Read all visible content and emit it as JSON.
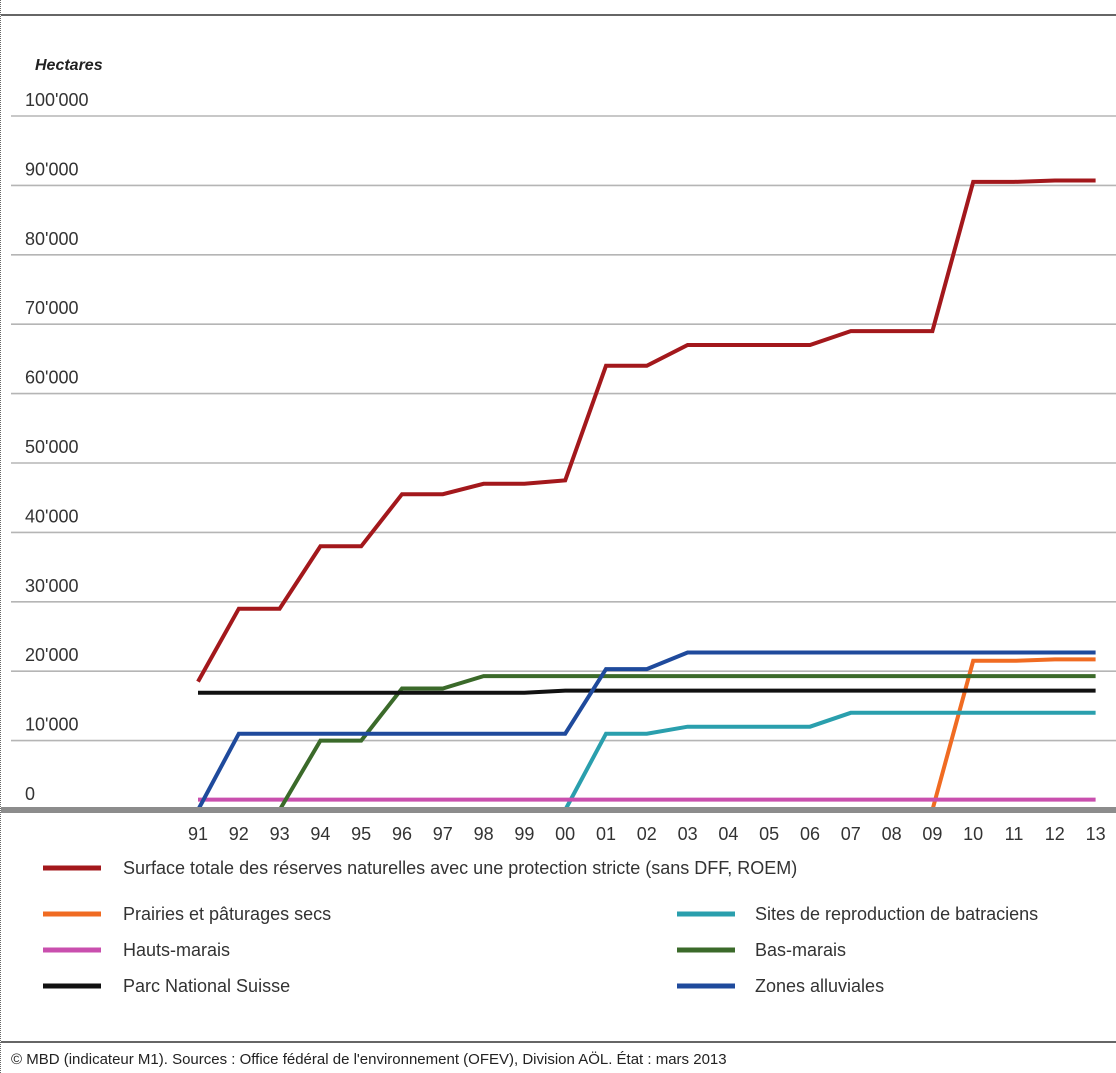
{
  "chart_data": {
    "type": "line",
    "title": "",
    "xlabel": "",
    "ylabel": "Hectares",
    "ylim": [
      0,
      100000
    ],
    "yticks": [
      "0",
      "10'000",
      "20'000",
      "30'000",
      "40'000",
      "50'000",
      "60'000",
      "70'000",
      "80'000",
      "90'000",
      "100'000"
    ],
    "categories": [
      "91",
      "92",
      "93",
      "94",
      "95",
      "96",
      "97",
      "98",
      "99",
      "00",
      "01",
      "02",
      "03",
      "04",
      "05",
      "06",
      "07",
      "08",
      "09",
      "10",
      "11",
      "12",
      "13"
    ],
    "grid": true,
    "legend_position": "bottom",
    "series": [
      {
        "name": "Surface totale des réserves naturelles avec une protection stricte  (sans DFF, ROEM)",
        "color": "#a3181c",
        "values": [
          18500,
          29000,
          29000,
          38000,
          38000,
          45500,
          45500,
          47000,
          47000,
          47500,
          64000,
          64000,
          67000,
          67000,
          67000,
          67000,
          69000,
          69000,
          69000,
          90500,
          90500,
          90700,
          90700
        ]
      },
      {
        "name": "Prairies et pâturages secs",
        "color": "#f06b22",
        "values": [
          null,
          null,
          null,
          null,
          null,
          null,
          null,
          null,
          null,
          null,
          null,
          null,
          null,
          null,
          null,
          null,
          null,
          null,
          0,
          21500,
          21500,
          21700,
          21700
        ]
      },
      {
        "name": "Sites de reproduction de batraciens",
        "color": "#2a9fad",
        "values": [
          null,
          null,
          null,
          null,
          null,
          null,
          null,
          null,
          null,
          0,
          11000,
          11000,
          12000,
          12000,
          12000,
          12000,
          14000,
          14000,
          14000,
          14000,
          14000,
          14000,
          14000
        ]
      },
      {
        "name": "Hauts-marais",
        "color": "#c94fae",
        "values": [
          1500,
          1500,
          1500,
          1500,
          1500,
          1500,
          1500,
          1500,
          1500,
          1500,
          1500,
          1500,
          1500,
          1500,
          1500,
          1500,
          1500,
          1500,
          1500,
          1500,
          1500,
          1500,
          1500
        ]
      },
      {
        "name": "Bas-marais",
        "color": "#3b6a2a",
        "values": [
          null,
          null,
          0,
          10000,
          10000,
          17500,
          17500,
          19300,
          19300,
          19300,
          19300,
          19300,
          19300,
          19300,
          19300,
          19300,
          19300,
          19300,
          19300,
          19300,
          19300,
          19300,
          19300
        ]
      },
      {
        "name": "Parc National Suisse",
        "color": "#111111",
        "values": [
          16900,
          16900,
          16900,
          16900,
          16900,
          16900,
          16900,
          16900,
          16900,
          17200,
          17200,
          17200,
          17200,
          17200,
          17200,
          17200,
          17200,
          17200,
          17200,
          17200,
          17200,
          17200,
          17200
        ]
      },
      {
        "name": "Zones alluviales",
        "color": "#1f4a9c",
        "values": [
          0,
          11000,
          11000,
          11000,
          11000,
          11000,
          11000,
          11000,
          11000,
          11000,
          20300,
          20300,
          22700,
          22700,
          22700,
          22700,
          22700,
          22700,
          22700,
          22700,
          22700,
          22700,
          22700
        ]
      }
    ],
    "source": "© MBD (indicateur M1). Sources : Office fédéral de l'environnement (OFEV), Division AÖL. État : mars 2013"
  }
}
